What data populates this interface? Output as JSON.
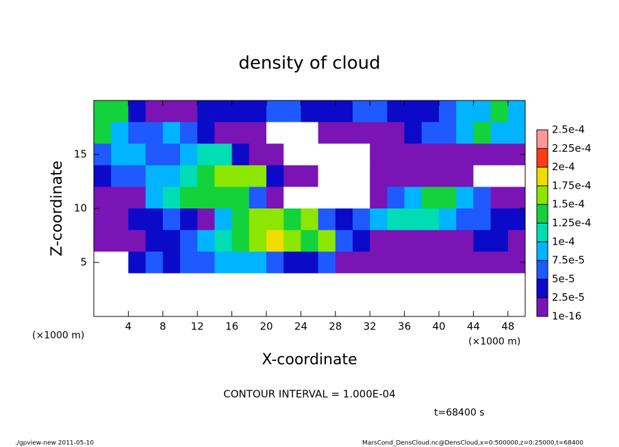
{
  "chart_data": {
    "type": "heatmap",
    "title": "density of cloud",
    "xlabel": "X-coordinate",
    "ylabel": "Z-coordinate",
    "x_unit": "(×1000 m)",
    "xlim": [
      0,
      50
    ],
    "xticks": [
      4,
      8,
      12,
      16,
      20,
      24,
      28,
      32,
      36,
      40,
      44,
      48
    ],
    "ylim": [
      0,
      20
    ],
    "yticks": [
      5,
      10,
      15
    ],
    "values": [
      [
        0.00014,
        0.00014,
        3e-05,
        1e-05,
        1e-05,
        1e-05,
        3e-05,
        3e-05,
        3e-05,
        3e-05,
        6e-05,
        6e-05,
        3e-05,
        3e-05,
        3e-05,
        6e-05,
        6e-05,
        3e-05,
        3e-05,
        3e-05,
        6e-05,
        8e-05,
        8e-05,
        0.00014,
        8e-05
      ],
      [
        0.00014,
        8e-05,
        6e-05,
        6e-05,
        8e-05,
        6e-05,
        3e-05,
        1e-05,
        1e-05,
        1e-05,
        0,
        0,
        0,
        1e-05,
        1e-05,
        1e-05,
        1e-05,
        1e-05,
        3e-05,
        6e-05,
        6e-05,
        8e-05,
        0.00014,
        8e-05,
        8e-05
      ],
      [
        6e-05,
        8e-05,
        8e-05,
        6e-05,
        6e-05,
        8e-05,
        0.00011,
        0.00011,
        3e-05,
        1e-05,
        1e-05,
        0,
        0,
        0,
        0,
        0,
        1e-05,
        1e-05,
        1e-05,
        1e-05,
        1e-05,
        1e-05,
        1e-05,
        1e-05,
        1e-05
      ],
      [
        3e-05,
        6e-05,
        6e-05,
        8e-05,
        8e-05,
        0.00011,
        0.00014,
        0.00016,
        0.00016,
        0.00016,
        3e-05,
        1e-05,
        1e-05,
        0,
        0,
        0,
        1e-05,
        1e-05,
        1e-05,
        1e-05,
        1e-05,
        1e-05,
        0,
        0,
        0
      ],
      [
        1e-05,
        1e-05,
        1e-05,
        8e-05,
        0.00011,
        0.00014,
        0.00014,
        0.00014,
        0.00014,
        6e-05,
        1e-05,
        0,
        0,
        0,
        0,
        0,
        1e-05,
        6e-05,
        8e-05,
        0.00014,
        0.00014,
        8e-05,
        6e-05,
        1e-05,
        1e-05
      ],
      [
        1e-05,
        1e-05,
        3e-05,
        3e-05,
        6e-05,
        3e-05,
        1e-05,
        8e-05,
        0.00014,
        0.00016,
        0.00016,
        0.00014,
        0.00016,
        6e-05,
        3e-05,
        6e-05,
        8e-05,
        0.00011,
        0.00011,
        0.00011,
        8e-05,
        6e-05,
        6e-05,
        3e-05,
        3e-05
      ],
      [
        1e-05,
        1e-05,
        1e-05,
        3e-05,
        3e-05,
        6e-05,
        8e-05,
        0.00011,
        0.00014,
        0.00016,
        0.00019,
        0.00016,
        0.00014,
        0.00016,
        6e-05,
        3e-05,
        1e-05,
        1e-05,
        1e-05,
        1e-05,
        1e-05,
        1e-05,
        3e-05,
        3e-05,
        1e-05
      ],
      [
        0,
        0,
        3e-05,
        6e-05,
        3e-05,
        6e-05,
        6e-05,
        8e-05,
        8e-05,
        8e-05,
        6e-05,
        3e-05,
        3e-05,
        6e-05,
        1e-05,
        1e-05,
        1e-05,
        1e-05,
        1e-05,
        1e-05,
        1e-05,
        1e-05,
        1e-05,
        1e-05,
        1e-05
      ],
      [
        0,
        0,
        0,
        0,
        0,
        0,
        0,
        0,
        0,
        0,
        0,
        0,
        0,
        0,
        0,
        0,
        0,
        0,
        0,
        0,
        0,
        0,
        0,
        0,
        0
      ],
      [
        0,
        0,
        0,
        0,
        0,
        0,
        0,
        0,
        0,
        0,
        0,
        0,
        0,
        0,
        0,
        0,
        0,
        0,
        0,
        0,
        0,
        0,
        0,
        0,
        0
      ]
    ],
    "colorbar": {
      "levels": [
        1e-16,
        {
          "value": 2.5e-05,
          "label": "2.5e-5"
        },
        {
          "value": 5e-05,
          "label": "5e-5"
        },
        {
          "value": 7.5e-05,
          "label": "7.5e-5"
        },
        {
          "value": 0.0001,
          "label": "1e-4"
        },
        {
          "value": 0.000125,
          "label": "1.25e-4"
        },
        {
          "value": 0.00015,
          "label": "1.5e-4"
        },
        {
          "value": 0.000175,
          "label": "1.75e-4"
        },
        {
          "value": 0.0002,
          "label": "2e-4"
        },
        {
          "value": 0.000225,
          "label": "2.25e-4"
        },
        {
          "value": 0.00025,
          "label": "2.5e-4"
        }
      ],
      "colors": [
        "#7a14b4",
        "#0a0ac8",
        "#1e5aff",
        "#00b4ff",
        "#00dcb4",
        "#14d23c",
        "#8ce600",
        "#f0dc00",
        "#ff3c14",
        "#ff9696"
      ]
    },
    "contour_interval": "CONTOUR INTERVAL = 1.000E-04",
    "time": "t=68400 s",
    "footer_left": "./gpview-new   2011-05-10",
    "footer_right": "MarsCond_DensCloud.nc@DensCloud,x=0:500000,z=0:25000,t=68400"
  }
}
